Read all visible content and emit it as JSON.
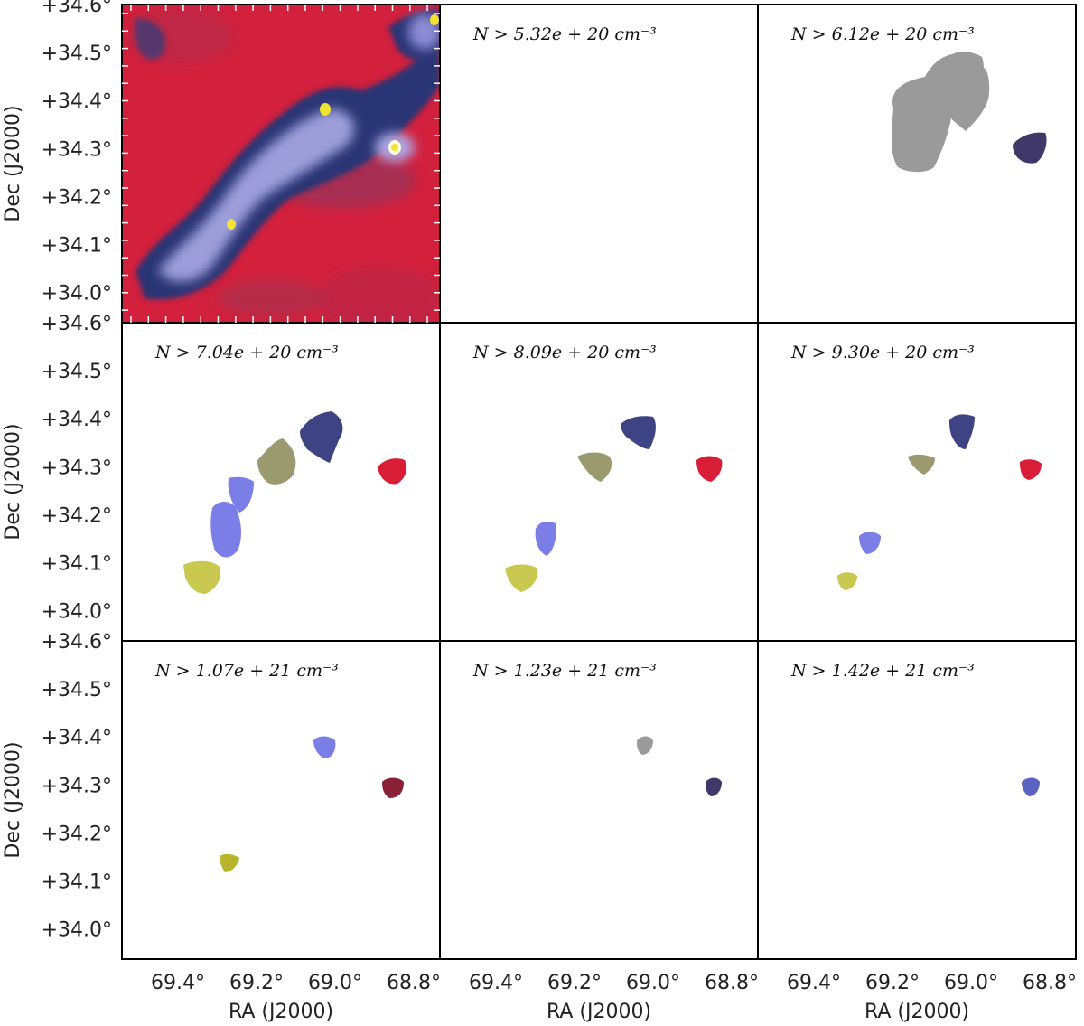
{
  "figure": {
    "y_tick_labels": [
      "+34.6°",
      "+34.5°",
      "+34.4°",
      "+34.3°",
      "+34.2°",
      "+34.1°",
      "+34.0°"
    ],
    "x_tick_labels": [
      "69.4°",
      "69.2°",
      "69.0°",
      "68.8°"
    ],
    "y_axis_label": "Dec (J2000)",
    "x_axis_label": "RA (J2000)"
  },
  "panels": [
    {
      "label": "",
      "blobs": []
    },
    {
      "label": "N > 5.32e + 20 cm⁻³",
      "blobs": []
    },
    {
      "label": "N > 6.12e + 20 cm⁻³",
      "blobs": [
        {
          "color": "#9a9a9a"
        },
        {
          "color": "#9a9a9a"
        },
        {
          "color": "#3f3868"
        }
      ]
    },
    {
      "label": "N > 7.04e + 20 cm⁻³",
      "blobs": [
        {
          "color": "#c9c850"
        },
        {
          "color": "#7c7ee8"
        },
        {
          "color": "#7c7ee8"
        },
        {
          "color": "#9b9a6e"
        },
        {
          "color": "#3d4383"
        },
        {
          "color": "#d81e36"
        }
      ]
    },
    {
      "label": "N > 8.09e + 20 cm⁻³",
      "blobs": [
        {
          "color": "#c9c850"
        },
        {
          "color": "#7c7ee8"
        },
        {
          "color": "#9b9a6e"
        },
        {
          "color": "#3d4383"
        },
        {
          "color": "#d81e36"
        }
      ]
    },
    {
      "label": "N > 9.30e + 20 cm⁻³",
      "blobs": [
        {
          "color": "#c9c850"
        },
        {
          "color": "#7c7ee8"
        },
        {
          "color": "#9b9a6e"
        },
        {
          "color": "#3d4383"
        },
        {
          "color": "#d81e36"
        }
      ]
    },
    {
      "label": "N > 1.07e + 21 cm⁻³",
      "blobs": [
        {
          "color": "#b7b52c"
        },
        {
          "color": "#7c7ee8"
        },
        {
          "color": "#8a2035"
        }
      ]
    },
    {
      "label": "N > 1.23e + 21 cm⁻³",
      "blobs": [
        {
          "color": "#9a9a9a"
        },
        {
          "color": "#3f3868"
        }
      ]
    },
    {
      "label": "N > 1.42e + 21 cm⁻³",
      "blobs": [
        {
          "color": "#5a62c2"
        }
      ]
    }
  ],
  "colors": {
    "background_map": "#d2203d",
    "filament_dark": "#2b3575",
    "filament_light": "#a9a8e4",
    "peak": "#f1e430"
  }
}
